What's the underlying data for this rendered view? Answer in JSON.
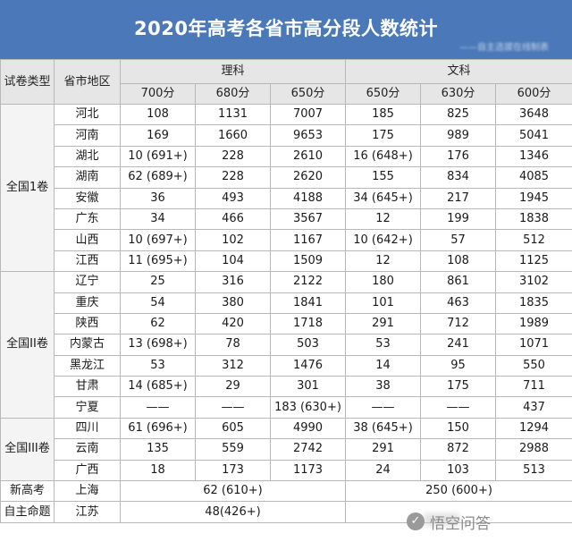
{
  "title": "2020年高考各省市高分段人数统计",
  "byline": "——自主选拔在线制表",
  "headers": {
    "exam_type": "试卷类型",
    "region": "省市地区",
    "science": "理科",
    "arts": "文科",
    "sci_cols": [
      "700分",
      "680分",
      "650分"
    ],
    "arts_cols": [
      "650分",
      "630分",
      "600分"
    ]
  },
  "groups": [
    {
      "name": "全国1卷",
      "rows": [
        {
          "region": "河北",
          "s700": "108",
          "s680": "1131",
          "s650": "7007",
          "a650": "185",
          "a630": "825",
          "a600": "3648"
        },
        {
          "region": "河南",
          "s700": "169",
          "s680": "1660",
          "s650": "9653",
          "a650": "175",
          "a630": "989",
          "a600": "5041"
        },
        {
          "region": "湖北",
          "s700": "10 (691+)",
          "s680": "228",
          "s650": "2610",
          "a650": "16 (648+)",
          "a630": "176",
          "a600": "1346"
        },
        {
          "region": "湖南",
          "s700": "62 (689+)",
          "s680": "228",
          "s650": "2620",
          "a650": "155",
          "a630": "834",
          "a600": "4085"
        },
        {
          "region": "安徽",
          "s700": "36",
          "s680": "493",
          "s650": "4188",
          "a650": "34 (645+)",
          "a630": "217",
          "a600": "1945"
        },
        {
          "region": "广东",
          "s700": "34",
          "s680": "466",
          "s650": "3567",
          "a650": "12",
          "a630": "199",
          "a600": "1838"
        },
        {
          "region": "山西",
          "s700": "10 (697+)",
          "s680": "102",
          "s650": "1167",
          "a650": "10 (642+)",
          "a630": "57",
          "a600": "512"
        },
        {
          "region": "江西",
          "s700": "11 (695+)",
          "s680": "104",
          "s650": "1509",
          "a650": "12",
          "a630": "108",
          "a600": "1125"
        }
      ]
    },
    {
      "name": "全国II卷",
      "rows": [
        {
          "region": "辽宁",
          "s700": "25",
          "s680": "316",
          "s650": "2122",
          "a650": "180",
          "a630": "861",
          "a600": "3102"
        },
        {
          "region": "重庆",
          "s700": "54",
          "s680": "380",
          "s650": "1841",
          "a650": "101",
          "a630": "463",
          "a600": "1835"
        },
        {
          "region": "陕西",
          "s700": "62",
          "s680": "420",
          "s650": "1718",
          "a650": "291",
          "a630": "712",
          "a600": "1989"
        },
        {
          "region": "内蒙古",
          "s700": "13 (698+)",
          "s680": "78",
          "s650": "503",
          "a650": "53",
          "a630": "241",
          "a600": "1071"
        },
        {
          "region": "黑龙江",
          "s700": "53",
          "s680": "312",
          "s650": "1476",
          "a650": "14",
          "a630": "95",
          "a600": "550"
        },
        {
          "region": "甘肃",
          "s700": "14 (685+)",
          "s680": "29",
          "s650": "301",
          "a650": "38",
          "a630": "175",
          "a600": "711"
        },
        {
          "region": "宁夏",
          "s700": "——",
          "s680": "——",
          "s650": "183 (630+)",
          "a650": "——",
          "a630": "——",
          "a600": "437"
        }
      ]
    },
    {
      "name": "全国III卷",
      "rows": [
        {
          "region": "四川",
          "s700": "61 (696+)",
          "s680": "605",
          "s650": "4990",
          "a650": "38 (645+)",
          "a630": "150",
          "a600": "1294"
        },
        {
          "region": "云南",
          "s700": "135",
          "s680": "559",
          "s650": "2742",
          "a650": "291",
          "a630": "872",
          "a600": "2988"
        },
        {
          "region": "广西",
          "s700": "18",
          "s680": "173",
          "s650": "1173",
          "a650": "24",
          "a630": "103",
          "a600": "513"
        }
      ]
    }
  ],
  "special": [
    {
      "type": "新高考",
      "region": "上海",
      "science_merged": "62 (610+)",
      "arts_merged": "250 (600+)"
    },
    {
      "type": "自主命题",
      "region": "江苏",
      "all_merged": "48(426+)"
    }
  ],
  "watermark": {
    "icon": "speech-bubble-icon",
    "text": "悟空问答"
  }
}
